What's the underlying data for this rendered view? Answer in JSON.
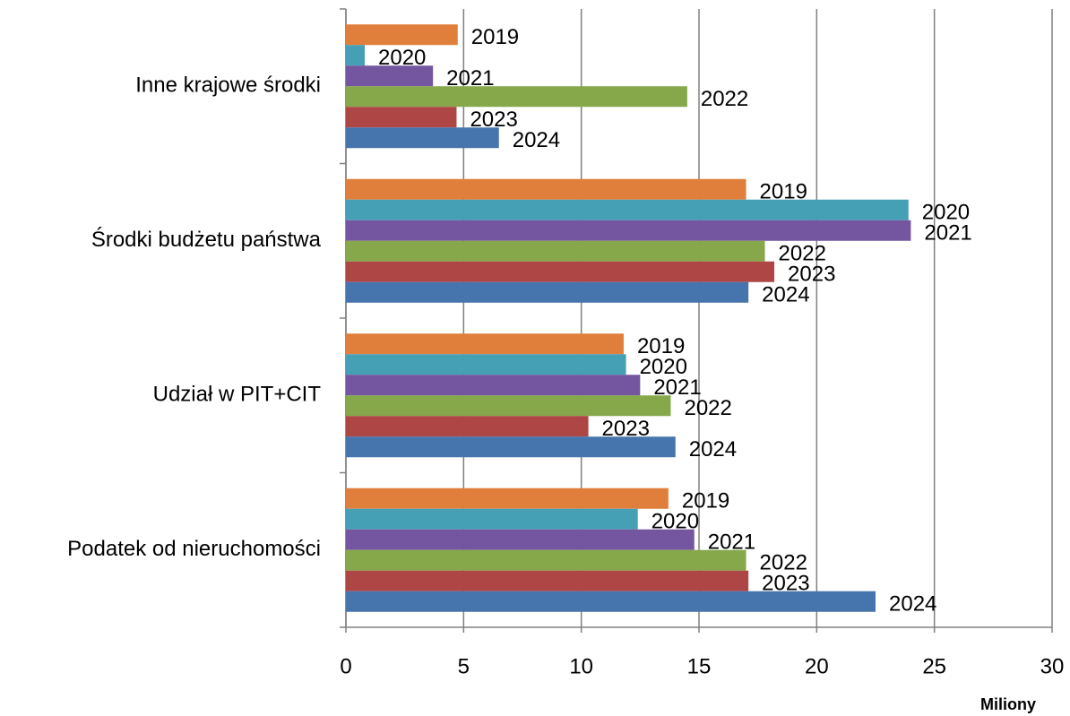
{
  "chart_data": {
    "type": "bar",
    "orientation": "horizontal",
    "categories": [
      "Inne krajowe środki",
      "Środki budżetu państwa",
      "Udział w PIT+CIT",
      "Podatek od nieruchomości"
    ],
    "series": [
      {
        "name": "2019",
        "color": "#e07f3b",
        "values": [
          4.75,
          17.0,
          11.8,
          13.7
        ]
      },
      {
        "name": "2020",
        "color": "#45a0b5",
        "values": [
          0.8,
          23.9,
          11.9,
          12.4
        ]
      },
      {
        "name": "2021",
        "color": "#7455a0",
        "values": [
          3.7,
          24.0,
          12.5,
          14.8
        ]
      },
      {
        "name": "2022",
        "color": "#86a84a",
        "values": [
          14.5,
          17.8,
          13.8,
          17.0
        ]
      },
      {
        "name": "2023",
        "color": "#ae4646",
        "values": [
          4.7,
          18.2,
          10.3,
          17.1
        ]
      },
      {
        "name": "2024",
        "color": "#4674ac",
        "values": [
          6.5,
          17.1,
          14.0,
          22.5
        ]
      }
    ],
    "xlabel": "Miliony",
    "xlim": [
      0,
      30
    ],
    "xticks": [
      0,
      5,
      10,
      15,
      20,
      25,
      30
    ],
    "grid": true
  }
}
